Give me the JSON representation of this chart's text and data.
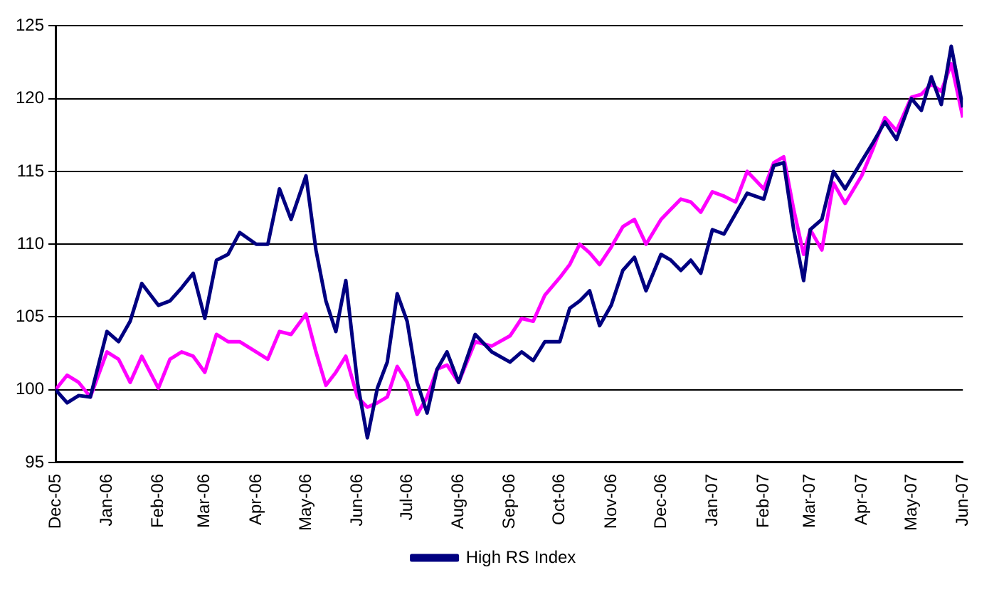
{
  "chart_data": {
    "type": "line",
    "x": [
      "2005-12-01",
      "2005-12-08",
      "2005-12-15",
      "2005-12-22",
      "2006-01-01",
      "2006-01-08",
      "2006-01-15",
      "2006-01-22",
      "2006-02-01",
      "2006-02-08",
      "2006-02-15",
      "2006-02-22",
      "2006-03-01",
      "2006-03-08",
      "2006-03-15",
      "2006-03-22",
      "2006-04-01",
      "2006-04-08",
      "2006-04-15",
      "2006-04-22",
      "2006-05-01",
      "2006-05-07",
      "2006-05-13",
      "2006-05-19",
      "2006-05-25",
      "2006-06-01",
      "2006-06-07",
      "2006-06-13",
      "2006-06-19",
      "2006-06-25",
      "2006-07-01",
      "2006-07-07",
      "2006-07-13",
      "2006-07-19",
      "2006-07-25",
      "2006-08-01",
      "2006-08-11",
      "2006-08-21",
      "2006-09-01",
      "2006-09-08",
      "2006-09-15",
      "2006-09-22",
      "2006-10-01",
      "2006-10-07",
      "2006-10-13",
      "2006-10-19",
      "2006-10-25",
      "2006-11-01",
      "2006-11-08",
      "2006-11-15",
      "2006-11-22",
      "2006-12-01",
      "2006-12-07",
      "2006-12-13",
      "2006-12-19",
      "2006-12-25",
      "2007-01-01",
      "2007-01-08",
      "2007-01-15",
      "2007-01-22",
      "2007-02-01",
      "2007-02-07",
      "2007-02-13",
      "2007-02-19",
      "2007-02-25",
      "2007-03-01",
      "2007-03-08",
      "2007-03-15",
      "2007-03-22",
      "2007-04-01",
      "2007-04-08",
      "2007-04-15",
      "2007-04-22",
      "2007-05-01",
      "2007-05-07",
      "2007-05-13",
      "2007-05-19",
      "2007-05-25",
      "2007-06-01"
    ],
    "series": [
      {
        "name": "High RS Index",
        "color": "#000080",
        "values": [
          100,
          99.1,
          99.6,
          99.5,
          104,
          103.3,
          104.7,
          107.3,
          105.8,
          106.1,
          107,
          108,
          104.9,
          108.9,
          109.3,
          110.8,
          110,
          110,
          113.8,
          111.7,
          114.7,
          109.6,
          106.1,
          104,
          107.5,
          100.5,
          96.7,
          100.1,
          101.9,
          106.6,
          104.7,
          100.5,
          98.4,
          101.4,
          102.6,
          100.5,
          103.8,
          102.6,
          101.9,
          102.6,
          102,
          103.3,
          103.3,
          105.6,
          106.1,
          106.8,
          104.4,
          105.8,
          108.2,
          109.1,
          106.8,
          109.3,
          108.9,
          108.2,
          108.9,
          108,
          111,
          110.7,
          112.1,
          113.5,
          113.1,
          115.4,
          115.6,
          111,
          107.5,
          111,
          111.7,
          115,
          113.8,
          115.7,
          117,
          118.4,
          117.2,
          120,
          119.2,
          121.5,
          119.6,
          123.6,
          119.4
        ]
      },
      {
        "color": "#ff00ff",
        "values": [
          100,
          101,
          100.5,
          99.5,
          102.6,
          102.1,
          100.5,
          102.3,
          100.1,
          102.1,
          102.6,
          102.3,
          101.2,
          103.8,
          103.3,
          103.3,
          102.6,
          102.1,
          104,
          103.8,
          105.2,
          102.6,
          100.3,
          101.2,
          102.3,
          99.5,
          98.8,
          99.1,
          99.5,
          101.6,
          100.5,
          98.3,
          99.5,
          101.4,
          101.7,
          100.5,
          103.3,
          103,
          103.7,
          104.9,
          104.7,
          106.5,
          107.7,
          108.6,
          110,
          109.4,
          108.6,
          109.8,
          111.2,
          111.7,
          110,
          111.7,
          112.4,
          113.1,
          112.9,
          112.2,
          113.6,
          113.3,
          112.9,
          115,
          113.8,
          115.6,
          116,
          112.4,
          109.3,
          111,
          109.6,
          114.2,
          112.8,
          114.7,
          116.6,
          118.7,
          117.8,
          120.1,
          120.3,
          121,
          120.5,
          122.4,
          118.7
        ]
      }
    ],
    "xlim": [
      "2005-12-01",
      "2007-06-01"
    ],
    "xticks": [
      {
        "value": "2005-12-01",
        "label": "Dec-05"
      },
      {
        "value": "2006-01-01",
        "label": "Jan-06"
      },
      {
        "value": "2006-02-01",
        "label": "Feb-06"
      },
      {
        "value": "2006-03-01",
        "label": "Mar-06"
      },
      {
        "value": "2006-04-01",
        "label": "Apr-06"
      },
      {
        "value": "2006-05-01",
        "label": "May-06"
      },
      {
        "value": "2006-06-01",
        "label": "Jun-06"
      },
      {
        "value": "2006-07-01",
        "label": "Jul-06"
      },
      {
        "value": "2006-08-01",
        "label": "Aug-06"
      },
      {
        "value": "2006-09-01",
        "label": "Sep-06"
      },
      {
        "value": "2006-10-01",
        "label": "Oct-06"
      },
      {
        "value": "2006-11-01",
        "label": "Nov-06"
      },
      {
        "value": "2006-12-01",
        "label": "Dec-06"
      },
      {
        "value": "2007-01-01",
        "label": "Jan-07"
      },
      {
        "value": "2007-02-01",
        "label": "Feb-07"
      },
      {
        "value": "2007-03-01",
        "label": "Mar-07"
      },
      {
        "value": "2007-04-01",
        "label": "Apr-07"
      },
      {
        "value": "2007-05-01",
        "label": "May-07"
      },
      {
        "value": "2007-06-01",
        "label": "Jun-07"
      }
    ],
    "ylim": [
      95,
      125
    ],
    "yticks": [
      95,
      100,
      105,
      110,
      115,
      120,
      125
    ],
    "grid": "y",
    "legend": "bottom",
    "marker": "none",
    "line_style": "solid"
  }
}
